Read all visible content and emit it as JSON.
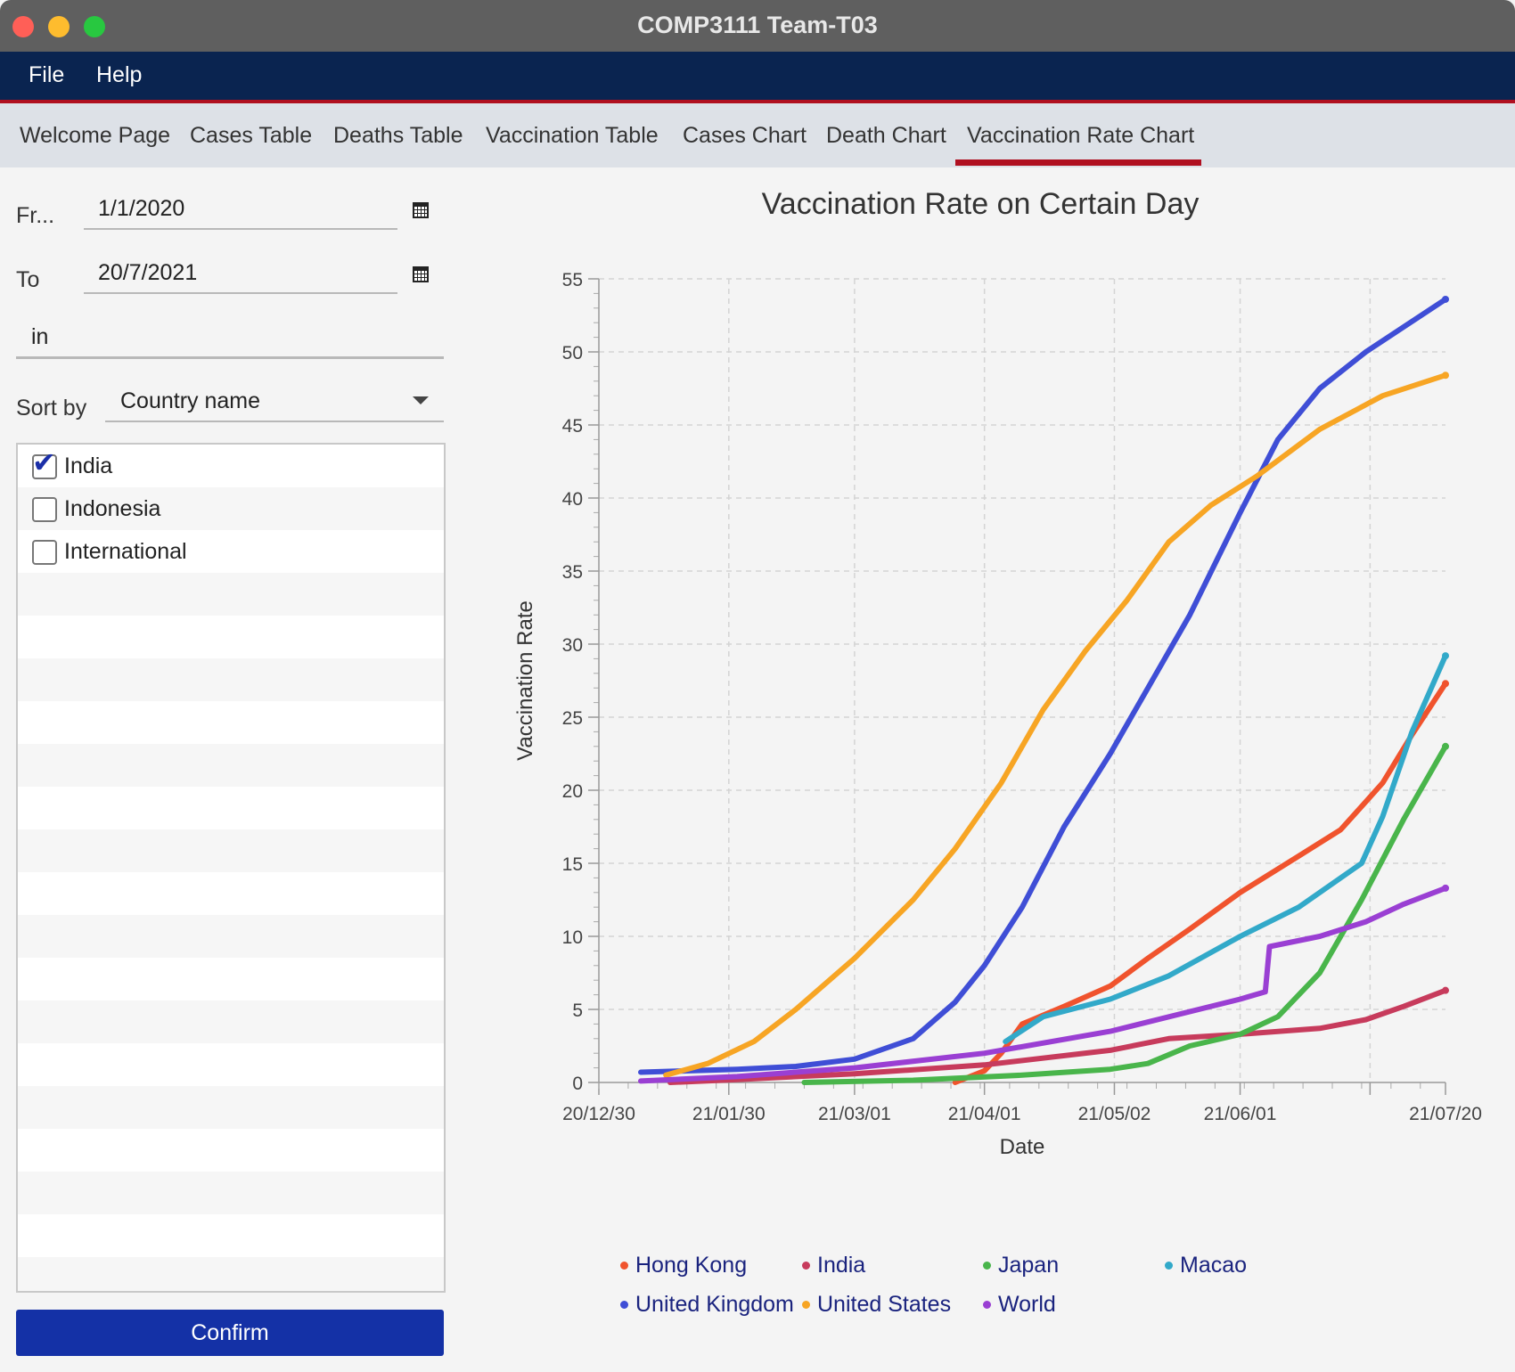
{
  "window": {
    "title": "COMP3111 Team-T03"
  },
  "menubar": {
    "items": [
      "File",
      "Help"
    ]
  },
  "tabs": [
    "Welcome Page",
    "Cases Table",
    "Deaths Table",
    "Vaccination Table",
    "Cases Chart",
    "Death Chart",
    "Vaccination Rate Chart"
  ],
  "active_tab": "Vaccination Rate Chart",
  "form": {
    "from_label": "Fr...",
    "from_value": "1/1/2020",
    "to_label": "To",
    "to_value": "20/7/2021",
    "search_value": "in",
    "sort_label": "Sort by",
    "sort_value": "Country name"
  },
  "countries": [
    {
      "name": "India",
      "checked": true
    },
    {
      "name": "Indonesia",
      "checked": false
    },
    {
      "name": "International",
      "checked": false
    }
  ],
  "confirm_label": "Confirm",
  "icons": {
    "calendar": "calendar-icon",
    "dropdown": "chevron-down-icon",
    "check": "check-icon"
  },
  "chart_data": {
    "type": "line",
    "title": "Vaccination Rate on Certain Day",
    "xlabel": "Date",
    "ylabel": "Vaccination Rate",
    "x_ticks": [
      "20/12/30",
      "21/01/30",
      "21/03/01",
      "21/04/01",
      "21/05/02",
      "21/06/01",
      "21/07/20"
    ],
    "xlim": [
      "2020-12-30",
      "2021-07-20"
    ],
    "y_ticks": [
      0,
      5,
      10,
      15,
      20,
      25,
      30,
      35,
      40,
      45,
      50,
      55
    ],
    "ylim": [
      0,
      55
    ],
    "grid": true,
    "legend_position": "bottom",
    "series": [
      {
        "name": "Hong Kong",
        "color": "#f0532d",
        "points": [
          [
            "2021-03-25",
            0
          ],
          [
            "2021-04-01",
            0.8
          ],
          [
            "2021-04-05",
            2
          ],
          [
            "2021-04-10",
            4
          ],
          [
            "2021-04-20",
            5.2
          ],
          [
            "2021-05-01",
            6.6
          ],
          [
            "2021-05-10",
            8.5
          ],
          [
            "2021-05-20",
            10.5
          ],
          [
            "2021-06-01",
            13
          ],
          [
            "2021-06-15",
            15.5
          ],
          [
            "2021-06-25",
            17.3
          ],
          [
            "2021-07-05",
            20.5
          ],
          [
            "2021-07-12",
            23.8
          ],
          [
            "2021-07-20",
            27.3
          ]
        ]
      },
      {
        "name": "India",
        "color": "#c73b5c",
        "points": [
          [
            "2021-01-16",
            0
          ],
          [
            "2021-02-01",
            0.2
          ],
          [
            "2021-03-01",
            0.6
          ],
          [
            "2021-04-01",
            1.2
          ],
          [
            "2021-05-01",
            2.2
          ],
          [
            "2021-05-15",
            3
          ],
          [
            "2021-06-01",
            3.3
          ],
          [
            "2021-06-20",
            3.7
          ],
          [
            "2021-07-01",
            4.3
          ],
          [
            "2021-07-10",
            5.2
          ],
          [
            "2021-07-20",
            6.3
          ]
        ]
      },
      {
        "name": "Japan",
        "color": "#49b54b",
        "points": [
          [
            "2021-02-17",
            0
          ],
          [
            "2021-03-15",
            0.15
          ],
          [
            "2021-04-10",
            0.5
          ],
          [
            "2021-05-01",
            0.9
          ],
          [
            "2021-05-10",
            1.3
          ],
          [
            "2021-05-20",
            2.5
          ],
          [
            "2021-06-01",
            3.3
          ],
          [
            "2021-06-10",
            4.5
          ],
          [
            "2021-06-20",
            7.5
          ],
          [
            "2021-06-30",
            12.5
          ],
          [
            "2021-07-10",
            18
          ],
          [
            "2021-07-20",
            23
          ]
        ]
      },
      {
        "name": "Macao",
        "color": "#32a9c9",
        "points": [
          [
            "2021-04-06",
            2.8
          ],
          [
            "2021-04-15",
            4.5
          ],
          [
            "2021-05-01",
            5.7
          ],
          [
            "2021-05-15",
            7.3
          ],
          [
            "2021-06-01",
            10
          ],
          [
            "2021-06-15",
            12
          ],
          [
            "2021-06-30",
            15
          ],
          [
            "2021-07-05",
            18.2
          ],
          [
            "2021-07-12",
            24
          ],
          [
            "2021-07-20",
            29.2
          ]
        ]
      },
      {
        "name": "United Kingdom",
        "color": "#3f4ed6",
        "points": [
          [
            "2021-01-09",
            0.7
          ],
          [
            "2021-02-01",
            0.9
          ],
          [
            "2021-02-15",
            1.1
          ],
          [
            "2021-03-01",
            1.6
          ],
          [
            "2021-03-15",
            3
          ],
          [
            "2021-03-25",
            5.5
          ],
          [
            "2021-04-01",
            8
          ],
          [
            "2021-04-10",
            12
          ],
          [
            "2021-04-20",
            17.5
          ],
          [
            "2021-05-01",
            22.5
          ],
          [
            "2021-05-10",
            27
          ],
          [
            "2021-05-20",
            32
          ],
          [
            "2021-06-01",
            39
          ],
          [
            "2021-06-10",
            44
          ],
          [
            "2021-06-20",
            47.5
          ],
          [
            "2021-07-01",
            50
          ],
          [
            "2021-07-20",
            53.6
          ]
        ]
      },
      {
        "name": "United States",
        "color": "#f7a524",
        "points": [
          [
            "2021-01-15",
            0.5
          ],
          [
            "2021-01-25",
            1.3
          ],
          [
            "2021-02-05",
            2.8
          ],
          [
            "2021-02-15",
            5
          ],
          [
            "2021-03-01",
            8.5
          ],
          [
            "2021-03-15",
            12.5
          ],
          [
            "2021-03-25",
            16
          ],
          [
            "2021-04-05",
            20.5
          ],
          [
            "2021-04-15",
            25.5
          ],
          [
            "2021-04-25",
            29.5
          ],
          [
            "2021-05-05",
            33
          ],
          [
            "2021-05-15",
            37
          ],
          [
            "2021-05-25",
            39.5
          ],
          [
            "2021-06-05",
            41.5
          ],
          [
            "2021-06-20",
            44.7
          ],
          [
            "2021-07-05",
            47
          ],
          [
            "2021-07-20",
            48.4
          ]
        ]
      },
      {
        "name": "World",
        "color": "#9a3fd3",
        "points": [
          [
            "2021-01-09",
            0.1
          ],
          [
            "2021-02-01",
            0.4
          ],
          [
            "2021-03-01",
            1
          ],
          [
            "2021-04-01",
            2
          ],
          [
            "2021-05-01",
            3.5
          ],
          [
            "2021-06-01",
            5.7
          ],
          [
            "2021-06-07",
            6.2
          ],
          [
            "2021-06-08",
            9.3
          ],
          [
            "2021-06-20",
            10
          ],
          [
            "2021-07-01",
            11
          ],
          [
            "2021-07-10",
            12.2
          ],
          [
            "2021-07-20",
            13.3
          ]
        ]
      }
    ]
  }
}
